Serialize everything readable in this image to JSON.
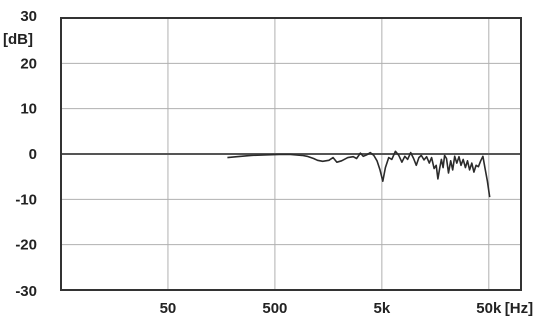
{
  "chart_data": {
    "type": "line",
    "title": "",
    "xlabel": "",
    "ylabel": "",
    "y_unit": "[dB]",
    "x_unit": "[Hz]",
    "x_scale": "log",
    "xlim": [
      5,
      100000
    ],
    "ylim": [
      -30,
      30
    ],
    "grid": true,
    "x_ticks": [
      {
        "value": 50,
        "label": "50"
      },
      {
        "value": 500,
        "label": "500"
      },
      {
        "value": 5000,
        "label": "5k"
      },
      {
        "value": 50000,
        "label": "50k"
      }
    ],
    "y_ticks": [
      {
        "value": 30,
        "label": "30"
      },
      {
        "value": 20,
        "label": "20"
      },
      {
        "value": 10,
        "label": "10"
      },
      {
        "value": 0,
        "label": "0"
      },
      {
        "value": -10,
        "label": "-10"
      },
      {
        "value": -20,
        "label": "-20"
      },
      {
        "value": -30,
        "label": "-30"
      }
    ],
    "colors": {
      "grid": "#b0b0b0",
      "zero_line": "#555555",
      "series": "#2b2b2b",
      "frame": "#333333"
    },
    "series": [
      {
        "name": "",
        "points": [
          [
            180,
            -0.8
          ],
          [
            220,
            -0.6
          ],
          [
            300,
            -0.3
          ],
          [
            400,
            -0.2
          ],
          [
            550,
            -0.1
          ],
          [
            700,
            -0.1
          ],
          [
            900,
            -0.3
          ],
          [
            1000,
            -0.5
          ],
          [
            1150,
            -1.0
          ],
          [
            1250,
            -1.4
          ],
          [
            1400,
            -1.6
          ],
          [
            1600,
            -1.4
          ],
          [
            1750,
            -0.8
          ],
          [
            1900,
            -1.8
          ],
          [
            2100,
            -1.5
          ],
          [
            2400,
            -0.8
          ],
          [
            2700,
            -0.6
          ],
          [
            2900,
            -1.0
          ],
          [
            3150,
            0.2
          ],
          [
            3350,
            -0.5
          ],
          [
            3600,
            -0.2
          ],
          [
            3900,
            0.3
          ],
          [
            4200,
            -0.3
          ],
          [
            4500,
            -1.5
          ],
          [
            4800,
            -3.5
          ],
          [
            5100,
            -6.0
          ],
          [
            5400,
            -3.0
          ],
          [
            5800,
            -0.8
          ],
          [
            6200,
            -1.2
          ],
          [
            6700,
            0.6
          ],
          [
            7200,
            -0.3
          ],
          [
            7700,
            -1.8
          ],
          [
            8200,
            -0.5
          ],
          [
            8700,
            -1.2
          ],
          [
            9300,
            0.3
          ],
          [
            9900,
            -1.0
          ],
          [
            10500,
            -2.5
          ],
          [
            11100,
            -0.8
          ],
          [
            11700,
            -0.3
          ],
          [
            12400,
            -1.3
          ],
          [
            13100,
            -0.6
          ],
          [
            13900,
            -2.0
          ],
          [
            14600,
            -0.8
          ],
          [
            15400,
            -3.2
          ],
          [
            16100,
            -2.5
          ],
          [
            16700,
            -5.5
          ],
          [
            17400,
            -3.0
          ],
          [
            18000,
            -1.2
          ],
          [
            18700,
            -3.0
          ],
          [
            19300,
            -0.3
          ],
          [
            20100,
            -1.0
          ],
          [
            21000,
            -4.2
          ],
          [
            22000,
            -1.5
          ],
          [
            23000,
            -3.5
          ],
          [
            24000,
            -0.5
          ],
          [
            25100,
            -2.0
          ],
          [
            26300,
            -0.6
          ],
          [
            27500,
            -2.5
          ],
          [
            28800,
            -1.2
          ],
          [
            30200,
            -3.0
          ],
          [
            31600,
            -1.5
          ],
          [
            33100,
            -3.5
          ],
          [
            34700,
            -2.0
          ],
          [
            36300,
            -4.0
          ],
          [
            38000,
            -2.5
          ],
          [
            40000,
            -2.8
          ],
          [
            42000,
            -1.5
          ],
          [
            44000,
            -0.5
          ],
          [
            46000,
            -3.0
          ],
          [
            48500,
            -6.0
          ],
          [
            51000,
            -9.5
          ]
        ]
      }
    ]
  }
}
